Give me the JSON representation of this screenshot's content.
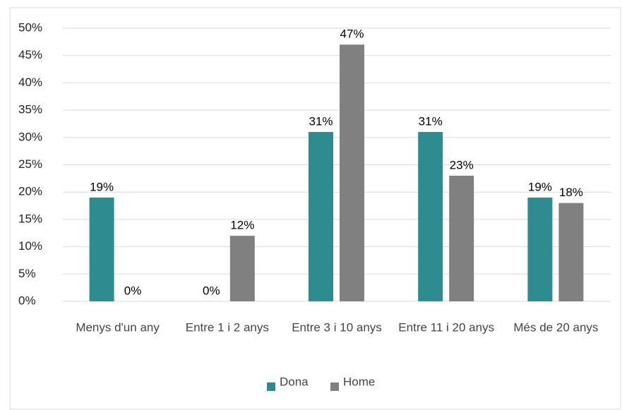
{
  "chart_data": {
    "type": "bar",
    "categories": [
      "Menys d'un any",
      "Entre 1 i 2 anys",
      "Entre 3 i 10 anys",
      "Entre 11 i 20 anys",
      "Més de 20 anys"
    ],
    "series": [
      {
        "name": "Dona",
        "color": "#2e8b8f",
        "values": [
          19,
          0,
          31,
          31,
          19
        ],
        "value_labels": [
          "19%",
          "0%",
          "31%",
          "31%",
          "19%"
        ]
      },
      {
        "name": "Home",
        "color": "#808080",
        "values": [
          0,
          12,
          47,
          23,
          18
        ],
        "value_labels": [
          "0%",
          "12%",
          "47%",
          "23%",
          "18%"
        ]
      }
    ],
    "ylim": [
      0,
      50
    ],
    "yticks": [
      {
        "value": 0,
        "label": "0%"
      },
      {
        "value": 5,
        "label": "5%"
      },
      {
        "value": 10,
        "label": "10%"
      },
      {
        "value": 15,
        "label": "15%"
      },
      {
        "value": 20,
        "label": "20%"
      },
      {
        "value": 25,
        "label": "25%"
      },
      {
        "value": 30,
        "label": "30%"
      },
      {
        "value": 35,
        "label": "35%"
      },
      {
        "value": 40,
        "label": "40%"
      },
      {
        "value": 45,
        "label": "45%"
      },
      {
        "value": 50,
        "label": "50%"
      }
    ],
    "grid": true,
    "legend": "bottom"
  }
}
